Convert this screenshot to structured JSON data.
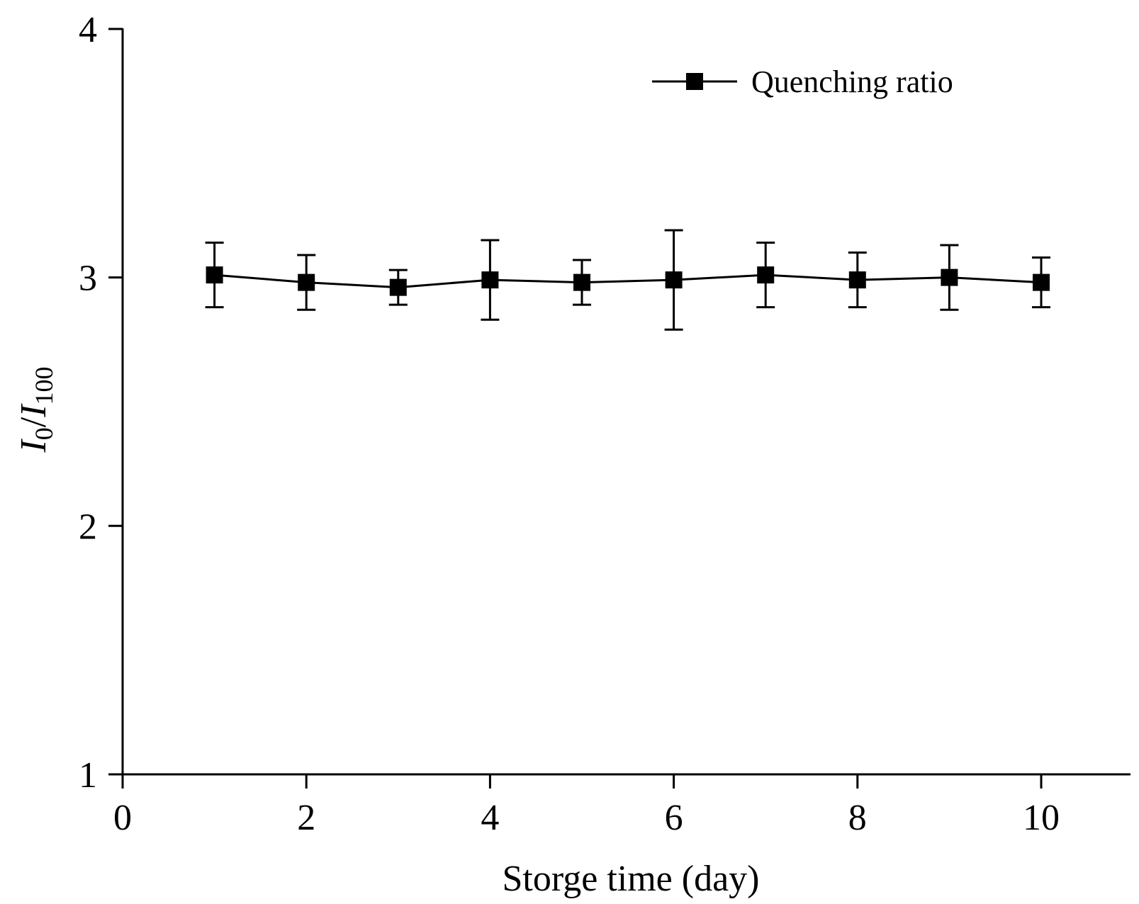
{
  "chart_data": {
    "type": "line",
    "title": "",
    "xlabel": "Storge time (day)",
    "ylabel": {
      "symbol": "I",
      "sub_numerator": "0",
      "separator": "/",
      "sub_denominator": "100"
    },
    "xlim": [
      0,
      11
    ],
    "ylim": [
      1,
      4
    ],
    "xticks": [
      "0",
      "2",
      "4",
      "6",
      "8",
      "10"
    ],
    "yticks": [
      "1",
      "2",
      "3",
      "4"
    ],
    "grid": false,
    "legend_position": "top-right",
    "series": [
      {
        "name": "Quenching ratio",
        "color": "#000000",
        "marker": "square",
        "x": [
          1,
          2,
          3,
          4,
          5,
          6,
          7,
          8,
          9,
          10
        ],
        "y": [
          3.01,
          2.98,
          2.96,
          2.99,
          2.98,
          2.99,
          3.01,
          2.99,
          3.0,
          2.98
        ],
        "error": [
          0.13,
          0.11,
          0.07,
          0.16,
          0.09,
          0.2,
          0.13,
          0.11,
          0.13,
          0.1
        ]
      }
    ]
  }
}
